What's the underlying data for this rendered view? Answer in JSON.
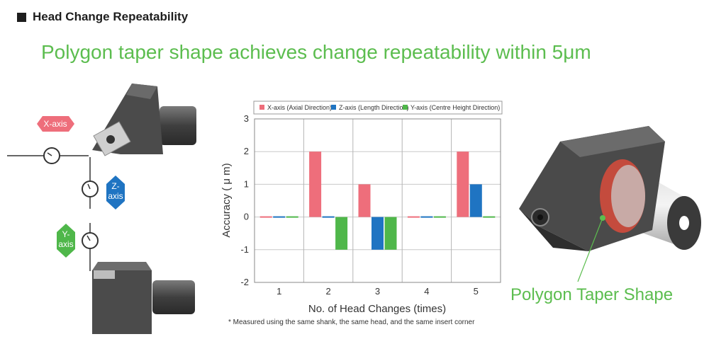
{
  "section_heading": "Head Change Repeatability",
  "headline": "Polygon taper shape achieves change repeatability within 5μm",
  "footnote": "* Measured using the same shank, the same head, and the same insert corner",
  "taper_label": "Polygon Taper Shape",
  "axis_badges": {
    "x": "X-axis",
    "z_line1": "Z-",
    "z_line2": "axis",
    "y_line1": "Y-",
    "y_line2": "axis"
  },
  "colors": {
    "x_axis": "#ee6e7b",
    "z_axis": "#1f74c2",
    "y_axis": "#4fb74a",
    "accent_green": "#5cbd4f",
    "tool_dark": "#4e4e4e"
  },
  "chart_data": {
    "type": "bar",
    "categories": [
      "1",
      "2",
      "3",
      "4",
      "5"
    ],
    "series": [
      {
        "name": "X-axis (Axial Direction)",
        "values": [
          0,
          2,
          1,
          0,
          2
        ]
      },
      {
        "name": "Z-axis (Length Direction)",
        "values": [
          0,
          0,
          -1,
          0,
          1
        ]
      },
      {
        "name": "Y-axis (Centre Height Direction)",
        "values": [
          0,
          -1,
          -1,
          0,
          0
        ]
      }
    ],
    "title": "",
    "xlabel": "No. of Head Changes (times)",
    "ylabel": "Accuracy ( μ m)",
    "ylim": [
      -2,
      3
    ],
    "yticks": [
      "3",
      "2",
      "1",
      "0",
      "-1",
      "-2"
    ],
    "grid": true,
    "legend": "top"
  }
}
